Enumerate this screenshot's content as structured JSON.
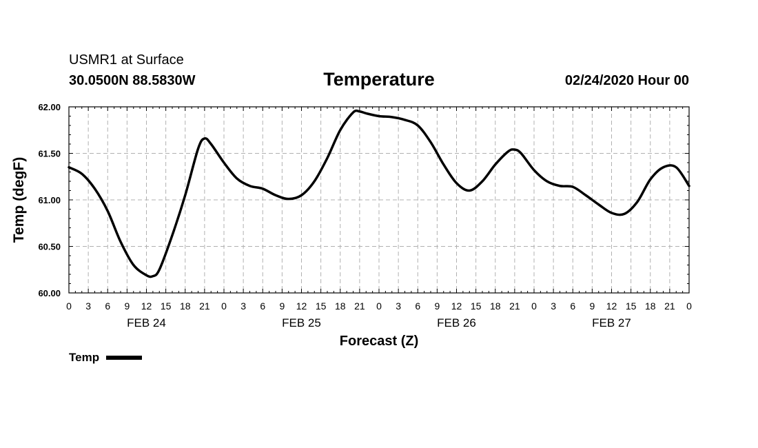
{
  "header": {
    "station": "USMR1 at Surface",
    "coords": "30.0500N 88.5830W",
    "valid_time": "02/24/2020 Hour 00"
  },
  "chart_data": {
    "type": "line",
    "title": "Temperature",
    "xlabel": "Forecast (Z)",
    "ylabel": "Temp (degF)",
    "ylim": [
      60.0,
      62.0
    ],
    "xlim_hours": [
      0,
      96
    ],
    "y_ticks": [
      "60.00",
      "60.50",
      "61.00",
      "61.50",
      "62.00"
    ],
    "x_tick_labels": [
      "0",
      "3",
      "6",
      "9",
      "12",
      "15",
      "18",
      "21",
      "0",
      "3",
      "6",
      "9",
      "12",
      "15",
      "18",
      "21",
      "0",
      "3",
      "6",
      "9",
      "12",
      "15",
      "18",
      "21",
      "0",
      "3",
      "6",
      "9",
      "12",
      "15",
      "18",
      "21",
      "0"
    ],
    "date_labels": [
      {
        "label": "FEB 24",
        "hour": 12
      },
      {
        "label": "FEB 25",
        "hour": 36
      },
      {
        "label": "FEB 26",
        "hour": 60
      },
      {
        "label": "FEB 27",
        "hour": 84
      }
    ],
    "grid": true,
    "legend_position": "bottom-left",
    "series": [
      {
        "name": "Temp",
        "color": "#000000",
        "x_hours": [
          0,
          2,
          4,
          6,
          8,
          10,
          12,
          13,
          14,
          16,
          18,
          20,
          21,
          22,
          24,
          26,
          28,
          30,
          32,
          34,
          36,
          38,
          40,
          42,
          44,
          45,
          46,
          48,
          50,
          52,
          54,
          56,
          58,
          60,
          62,
          64,
          66,
          68,
          69,
          70,
          72,
          74,
          76,
          78,
          80,
          82,
          84,
          86,
          88,
          90,
          92,
          94,
          96
        ],
        "values": [
          61.35,
          61.28,
          61.12,
          60.88,
          60.55,
          60.3,
          60.19,
          60.18,
          60.25,
          60.62,
          61.05,
          61.55,
          61.66,
          61.6,
          61.4,
          61.23,
          61.15,
          61.12,
          61.05,
          61.01,
          61.05,
          61.2,
          61.45,
          61.75,
          61.94,
          61.95,
          61.93,
          61.9,
          61.89,
          61.86,
          61.8,
          61.62,
          61.38,
          61.18,
          61.1,
          61.2,
          61.38,
          61.52,
          61.54,
          61.5,
          61.32,
          61.2,
          61.15,
          61.14,
          61.05,
          60.95,
          60.86,
          60.85,
          60.98,
          61.22,
          61.35,
          61.35,
          61.15
        ]
      }
    ]
  }
}
